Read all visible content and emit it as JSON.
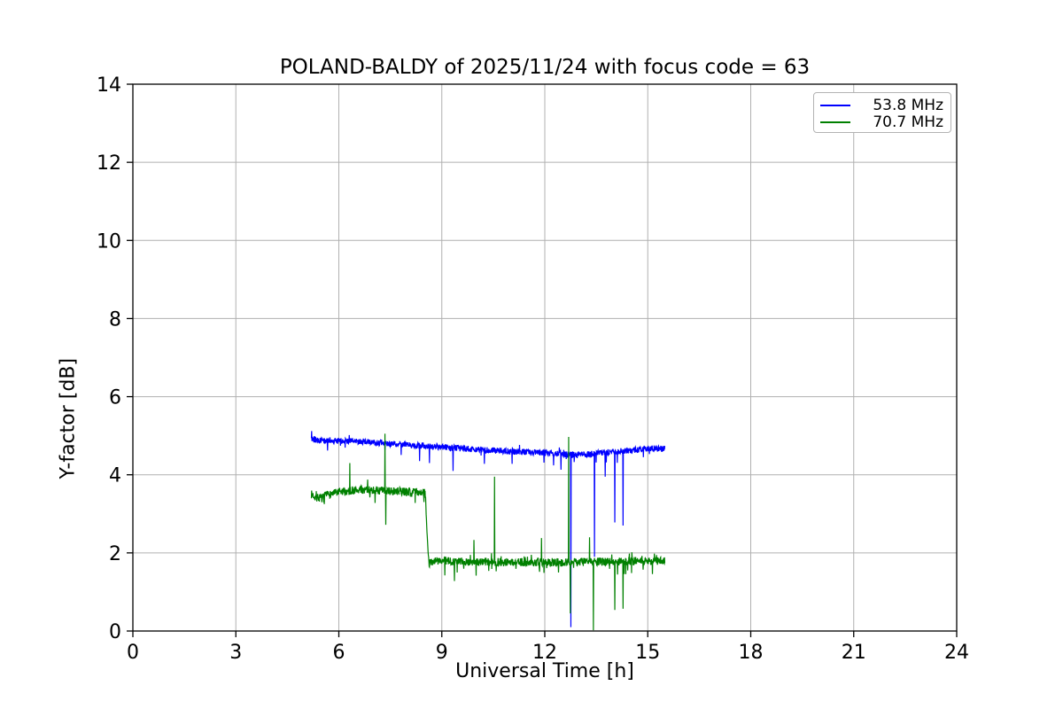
{
  "figure": {
    "background": "#ffffff"
  },
  "chart_data": {
    "type": "line",
    "title": "POLAND-BALDY of 2025/11/24 with focus code = 63",
    "xlabel": "Universal Time [h]",
    "ylabel": "Y-factor [dB]",
    "xlim": [
      0,
      24
    ],
    "ylim": [
      0,
      14
    ],
    "xticks": [
      0,
      3,
      6,
      9,
      12,
      15,
      18,
      21,
      24
    ],
    "yticks": [
      0,
      2,
      4,
      6,
      8,
      10,
      12,
      14
    ],
    "grid": true,
    "grid_color": "#b0b0b0",
    "axis_color": "#000000",
    "legend": {
      "position": "upper right",
      "entries": [
        {
          "label": "53.8 MHz",
          "color": "#0000ff"
        },
        {
          "label": "70.7 MHz",
          "color": "#008000"
        }
      ]
    },
    "series": [
      {
        "name": "53.8 MHz",
        "color": "#0000ff",
        "x_start": 5.2,
        "x_end": 15.5,
        "sample_step": 0.008,
        "seed": 42,
        "noise": 0.08,
        "whisker": {
          "down_prob": 0.02,
          "down": [
            0.08,
            0.28
          ],
          "up_prob": 0.012,
          "up": [
            0.05,
            0.12
          ]
        },
        "baseline": [
          [
            5.2,
            4.92
          ],
          [
            5.5,
            4.87
          ],
          [
            6.5,
            4.86
          ],
          [
            7.5,
            4.8
          ],
          [
            8.5,
            4.74
          ],
          [
            9.5,
            4.68
          ],
          [
            10.5,
            4.62
          ],
          [
            11.5,
            4.58
          ],
          [
            12.3,
            4.55
          ],
          [
            12.9,
            4.5
          ],
          [
            13.6,
            4.56
          ],
          [
            14.5,
            4.62
          ],
          [
            15.1,
            4.68
          ],
          [
            15.5,
            4.66
          ]
        ],
        "spikes": [
          {
            "x": 5.21,
            "y": 5.12
          },
          {
            "x": 8.35,
            "y": 4.35
          },
          {
            "x": 8.64,
            "y": 4.3
          },
          {
            "x": 9.33,
            "y": 4.1
          },
          {
            "x": 10.24,
            "y": 4.28
          },
          {
            "x": 11.05,
            "y": 4.28
          },
          {
            "x": 12.26,
            "y": 4.24
          },
          {
            "x": 12.47,
            "y": 4.13
          },
          {
            "x": 12.76,
            "y": 0.1
          },
          {
            "x": 13.45,
            "y": 1.9
          },
          {
            "x": 13.76,
            "y": 3.95
          },
          {
            "x": 14.04,
            "y": 2.78
          },
          {
            "x": 14.28,
            "y": 2.7
          }
        ]
      },
      {
        "name": "70.7 MHz",
        "color": "#008000",
        "x_start": 5.2,
        "x_end": 15.5,
        "sample_step": 0.008,
        "seed": 7,
        "noise": 0.105,
        "whisker": {
          "down_prob": 0.03,
          "down": [
            0.08,
            0.3
          ],
          "up_prob": 0.02,
          "up": [
            0.06,
            0.22
          ]
        },
        "baseline": [
          [
            5.2,
            3.5
          ],
          [
            5.35,
            3.42
          ],
          [
            5.5,
            3.4
          ],
          [
            5.7,
            3.5
          ],
          [
            6.1,
            3.56
          ],
          [
            6.7,
            3.62
          ],
          [
            7.5,
            3.58
          ],
          [
            8.45,
            3.56
          ],
          [
            8.52,
            3.5
          ],
          [
            8.58,
            2.25
          ],
          [
            8.63,
            1.72
          ],
          [
            8.75,
            1.8
          ],
          [
            9.5,
            1.78
          ],
          [
            11.0,
            1.76
          ],
          [
            12.5,
            1.76
          ],
          [
            14.0,
            1.78
          ],
          [
            15.5,
            1.8
          ]
        ],
        "spikes": [
          {
            "x": 6.32,
            "y": 4.3
          },
          {
            "x": 7.345,
            "y": 5.05
          },
          {
            "x": 7.37,
            "y": 2.72
          },
          {
            "x": 9.37,
            "y": 1.28
          },
          {
            "x": 9.94,
            "y": 2.33
          },
          {
            "x": 10.54,
            "y": 3.95
          },
          {
            "x": 11.9,
            "y": 2.38
          },
          {
            "x": 12.7,
            "y": 4.97
          },
          {
            "x": 12.74,
            "y": 0.45
          },
          {
            "x": 13.3,
            "y": 2.4
          },
          {
            "x": 13.42,
            "y": 0.02
          },
          {
            "x": 14.04,
            "y": 0.54
          },
          {
            "x": 14.28,
            "y": 0.57
          }
        ]
      }
    ]
  }
}
